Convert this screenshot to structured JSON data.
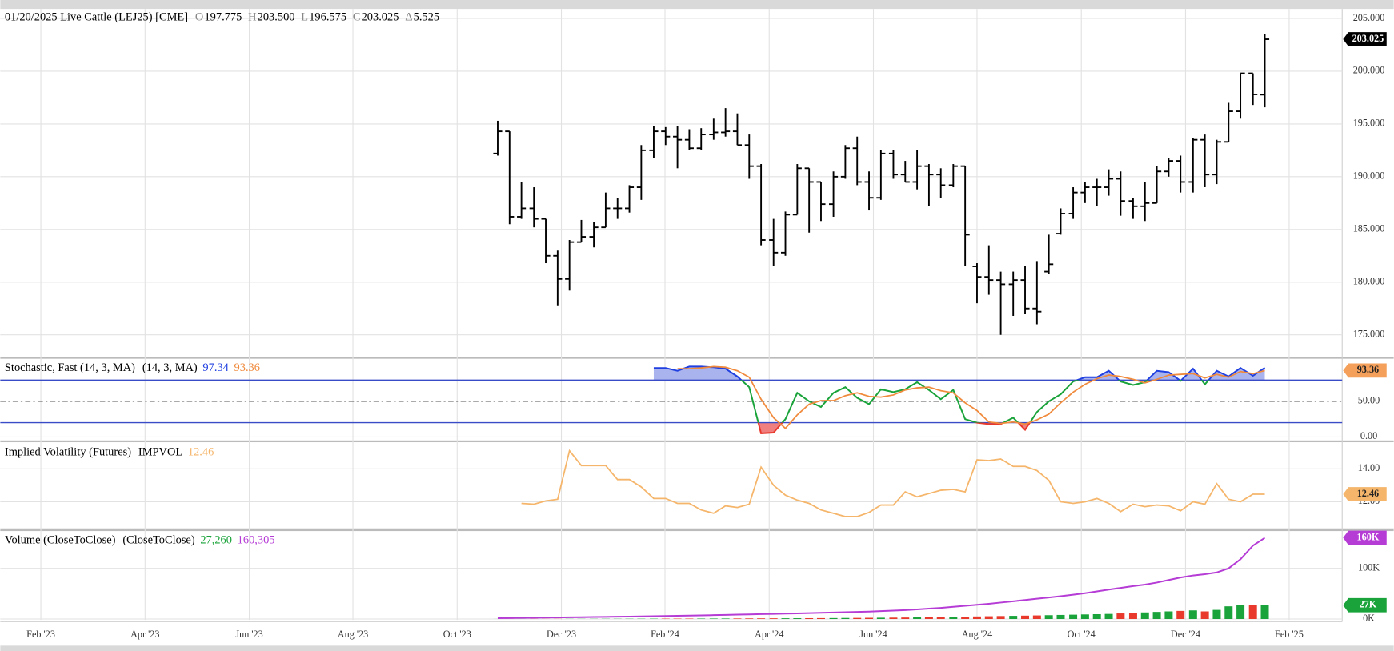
{
  "chart_data": [
    {
      "type": "ohlc",
      "title": "01/20/2025 Live Cattle (LEJ25) [CME]",
      "fields": [
        {
          "key": "O",
          "value": "197.775"
        },
        {
          "key": "H",
          "value": "203.500"
        },
        {
          "key": "L",
          "value": "196.575"
        },
        {
          "key": "C",
          "value": "203.025"
        },
        {
          "key": "Δ",
          "value": "5.525"
        }
      ],
      "color": "#000000",
      "badge": "203.025",
      "badge_color": "#000000",
      "badge_text_color": "#ffffff",
      "x": [
        2023.815,
        2023.834,
        2023.853,
        2023.873,
        2023.892,
        2023.911,
        2023.93,
        2023.949,
        2023.969,
        2023.988,
        2024.007,
        2024.026,
        2024.045,
        2024.065,
        2024.084,
        2024.103,
        2024.122,
        2024.141,
        2024.161,
        2024.18,
        2024.199,
        2024.218,
        2024.237,
        2024.257,
        2024.276,
        2024.295,
        2024.314,
        2024.333,
        2024.353,
        2024.372,
        2024.391,
        2024.41,
        2024.429,
        2024.449,
        2024.468,
        2024.487,
        2024.506,
        2024.525,
        2024.545,
        2024.564,
        2024.583,
        2024.602,
        2024.621,
        2024.641,
        2024.66,
        2024.679,
        2024.698,
        2024.717,
        2024.737,
        2024.756,
        2024.775,
        2024.794,
        2024.813,
        2024.833,
        2024.852,
        2024.871,
        2024.89,
        2024.909,
        2024.929,
        2024.948,
        2024.967,
        2024.986,
        2025.005,
        2025.025,
        2025.044
      ],
      "open": [
        192.2,
        194.3,
        186.2,
        187,
        186,
        182.5,
        180.3,
        183.8,
        184.3,
        185.2,
        187,
        187,
        189,
        192.5,
        194.3,
        193.8,
        193.5,
        192.7,
        194,
        194.2,
        194.3,
        193,
        191,
        184,
        182.8,
        186.4,
        190.8,
        189.5,
        187.4,
        190,
        192.7,
        189.5,
        188,
        192.2,
        190.2,
        189.5,
        191,
        190.2,
        189.2,
        191,
        181.5,
        180.5,
        180.2,
        179.8,
        180.2,
        177.5,
        181,
        184.6,
        186.5,
        188.5,
        189,
        189,
        189.8,
        187.7,
        187.2,
        187.5,
        190.5,
        191.5,
        189.5,
        193.5,
        190.2,
        193.3,
        196.2,
        199.8,
        197.775
      ],
      "high": [
        195.3,
        194.3,
        189.5,
        189,
        186,
        183,
        184,
        185.9,
        185.7,
        188.5,
        188,
        189.2,
        193,
        194.8,
        194.7,
        194.8,
        194.5,
        194.6,
        195.5,
        196.5,
        196,
        194,
        191.2,
        186,
        186.7,
        191.2,
        190.8,
        189.5,
        190.5,
        193,
        193.8,
        190.5,
        192.5,
        192.5,
        191.5,
        192.5,
        191.2,
        190.8,
        191.2,
        191,
        181.8,
        183.5,
        181,
        181,
        181.5,
        182,
        184.5,
        187,
        189,
        189.5,
        189.8,
        190.7,
        190.5,
        188,
        189.5,
        191,
        191.8,
        192,
        193.7,
        194,
        193.5,
        197,
        199.8,
        199.8,
        203.5
      ],
      "low": [
        192,
        185.5,
        186,
        185.2,
        181.8,
        177.8,
        179.2,
        183.8,
        183.3,
        185.2,
        186,
        186.6,
        187.8,
        191.8,
        193,
        190.8,
        192.5,
        192.5,
        193.5,
        193.8,
        193,
        189.8,
        183.5,
        181.5,
        182.5,
        186.4,
        184.7,
        185.8,
        186.2,
        189.8,
        189.2,
        186.8,
        187.8,
        189.8,
        189.5,
        188.8,
        187.2,
        188,
        189,
        181.5,
        178,
        178.8,
        175,
        176.8,
        177,
        176,
        180.8,
        184.5,
        186,
        187.5,
        187.2,
        188.2,
        186.3,
        186,
        185.8,
        187.5,
        190,
        188.5,
        188.5,
        189,
        189.3,
        193.3,
        195.5,
        196.8,
        196.575
      ],
      "close": [
        194.3,
        186.2,
        187,
        186,
        182.5,
        180.3,
        183.8,
        184.3,
        185.2,
        187,
        187,
        189,
        192.5,
        194.3,
        193.8,
        193.5,
        192.7,
        194,
        194.2,
        194.3,
        193,
        191,
        184,
        182.8,
        186.4,
        190.8,
        189.5,
        187.4,
        190,
        192.7,
        189.5,
        188,
        192.2,
        190.2,
        189.5,
        191,
        190.2,
        189.2,
        191,
        184.5,
        180.5,
        180.2,
        179.8,
        180.2,
        177.5,
        177.2,
        181.7,
        186.5,
        188.5,
        189,
        189,
        189.8,
        187.7,
        187.2,
        187.5,
        190.5,
        191.5,
        189.5,
        193.5,
        190.2,
        193.3,
        196.2,
        199.8,
        197.8,
        203.025
      ],
      "xlim": [
        2023.018,
        2025.168
      ],
      "xticks": [
        {
          "value": 2023.083,
          "label": "Feb '23"
        },
        {
          "value": 2023.25,
          "label": "Apr '23"
        },
        {
          "value": 2023.417,
          "label": "Jun '23"
        },
        {
          "value": 2023.583,
          "label": "Aug '23"
        },
        {
          "value": 2023.75,
          "label": "Oct '23"
        },
        {
          "value": 2023.917,
          "label": "Dec '23"
        },
        {
          "value": 2024.083,
          "label": "Feb '24"
        },
        {
          "value": 2024.25,
          "label": "Apr '24"
        },
        {
          "value": 2024.417,
          "label": "Jun '24"
        },
        {
          "value": 2024.583,
          "label": "Aug '24"
        },
        {
          "value": 2024.75,
          "label": "Oct '24"
        },
        {
          "value": 2024.917,
          "label": "Dec '24"
        },
        {
          "value": 2025.083,
          "label": "Feb '25"
        }
      ],
      "ylim": [
        172.9,
        205.9
      ],
      "yticks": [
        {
          "value": 175,
          "label": "175.000"
        },
        {
          "value": 180,
          "label": "180.000"
        },
        {
          "value": 185,
          "label": "185.000"
        },
        {
          "value": 190,
          "label": "190.000"
        },
        {
          "value": 195,
          "label": "195.000"
        },
        {
          "value": 200,
          "label": "200.000"
        },
        {
          "value": 205,
          "label": "205.000"
        }
      ]
    },
    {
      "type": "stochastic",
      "title": "Stochastic, Fast (14, 3, MA)",
      "subtitle": "(14, 3, MA)",
      "levels": [
        80,
        20
      ],
      "level_color": "#3a4bc8",
      "ylim": [
        -5,
        110
      ],
      "yticks": [
        {
          "value": 0,
          "label": "0.00"
        },
        {
          "value": 50,
          "label": "50.00"
        }
      ],
      "series": [
        {
          "colors": {
            "upper": "#1f3fe0",
            "middle": "#1aa33a",
            "lower": "#e8392c"
          },
          "fill_upper": "#a9b3ee",
          "fill_lower": "#f08080",
          "last_label": "97.34",
          "values": [
            null,
            null,
            null,
            null,
            null,
            null,
            null,
            null,
            null,
            null,
            null,
            null,
            null,
            97,
            97,
            93,
            99,
            99,
            98,
            96,
            85,
            70,
            5,
            6,
            25,
            62,
            50,
            42,
            62,
            70,
            55,
            46,
            67,
            63,
            67,
            77,
            66,
            53,
            66,
            25,
            20,
            18,
            18,
            27,
            10,
            35,
            50,
            60,
            78,
            84,
            84,
            93,
            78,
            73,
            77,
            93,
            91,
            79,
            96,
            74,
            93,
            85,
            97,
            86,
            97.34
          ]
        },
        {
          "color": "#f08a3c",
          "last_label": "93.36",
          "badge": "93.36",
          "badge_color": "#f5a05a",
          "badge_text_color": "#222222",
          "values": [
            null,
            null,
            null,
            null,
            null,
            null,
            null,
            null,
            null,
            null,
            null,
            null,
            null,
            null,
            null,
            96,
            96,
            97,
            99,
            98,
            93,
            84,
            53,
            27,
            12,
            31,
            46,
            51,
            51,
            58,
            62,
            57,
            56,
            59,
            66,
            69,
            70,
            65,
            62,
            48,
            37,
            21,
            19,
            21,
            18,
            24,
            32,
            48,
            63,
            74,
            82,
            87,
            85,
            81,
            76,
            81,
            87,
            88,
            89,
            83,
            88,
            84,
            92,
            89,
            93.36
          ]
        }
      ]
    },
    {
      "type": "line",
      "title": "Implied Volatility (Futures)",
      "subtitle": "IMPVOL",
      "ylim": [
        10.38,
        15.62
      ],
      "yticks": [
        {
          "value": 12,
          "label": "12.00"
        },
        {
          "value": 14,
          "label": "14.00"
        }
      ],
      "series": [
        {
          "color": "#f5b56a",
          "last_label": "12.46",
          "badge": "12.46",
          "badge_color": "#f5b56a",
          "badge_text_color": "#222222",
          "values": [
            null,
            null,
            11.9,
            11.85,
            12.05,
            12.15,
            15.1,
            14.2,
            14.2,
            14.2,
            13.35,
            13.35,
            12.9,
            12.2,
            12.2,
            11.9,
            11.9,
            11.5,
            11.3,
            11.75,
            11.65,
            11.85,
            14.1,
            13.0,
            12.4,
            12.1,
            11.9,
            11.5,
            11.3,
            11.1,
            11.1,
            11.35,
            11.8,
            11.8,
            12.6,
            12.3,
            12.5,
            12.7,
            12.75,
            12.6,
            14.55,
            14.5,
            14.6,
            14.15,
            14.15,
            13.9,
            13.3,
            12.0,
            11.9,
            12.0,
            12.2,
            11.9,
            11.4,
            11.85,
            11.7,
            11.8,
            11.75,
            11.45,
            12.0,
            11.85,
            13.1,
            12.15,
            12.0,
            12.46,
            12.46
          ]
        }
      ]
    },
    {
      "type": "volume",
      "title": "Volume (CloseToClose)",
      "subtitle": "(CloseToClose)",
      "ylim": [
        -1800,
        173700
      ],
      "yticks": [
        {
          "value": 0,
          "label": "0K"
        },
        {
          "value": 100000,
          "label": "100K"
        }
      ],
      "series": [
        {
          "up_color": "#1aa33a",
          "down_color": "#e8392c",
          "last_label": "27,260",
          "badge": "27K",
          "badge_color": "#1aa33a",
          "badge_text_color": "#ffffff",
          "values": [
            100,
            150,
            150,
            200,
            200,
            250,
            300,
            300,
            350,
            400,
            400,
            450,
            500,
            600,
            650,
            700,
            750,
            800,
            900,
            950,
            1000,
            1100,
            1200,
            1300,
            1400,
            1500,
            1600,
            1700,
            1800,
            2000,
            2100,
            2300,
            2500,
            2700,
            2900,
            3200,
            3500,
            3800,
            4200,
            4600,
            5000,
            5400,
            5800,
            6200,
            6600,
            7000,
            7500,
            8000,
            8500,
            9000,
            9500,
            10000,
            11000,
            12000,
            13000,
            14000,
            15000,
            16000,
            17000,
            15000,
            18000,
            25000,
            28000,
            27000,
            27260
          ]
        },
        {
          "color": "#b63cd6",
          "last_label": "160,305",
          "badge": "160K",
          "badge_color": "#b63cd6",
          "badge_text_color": "#ffffff",
          "values": [
            1500,
            1800,
            2100,
            2400,
            2700,
            3000,
            3300,
            3600,
            3900,
            4200,
            4500,
            4800,
            5100,
            5500,
            5900,
            6300,
            6700,
            7100,
            7600,
            8100,
            8600,
            9100,
            9600,
            10100,
            10600,
            11100,
            11600,
            12200,
            12800,
            13400,
            14000,
            14700,
            15500,
            16500,
            17600,
            19000,
            20500,
            22000,
            24000,
            26000,
            28000,
            30000,
            32500,
            35000,
            37500,
            40000,
            42500,
            45000,
            48000,
            51000,
            54500,
            58000,
            61500,
            65000,
            68000,
            72000,
            77000,
            82000,
            86000,
            88500,
            92000,
            100000,
            118000,
            145000,
            160305
          ]
        }
      ]
    }
  ]
}
